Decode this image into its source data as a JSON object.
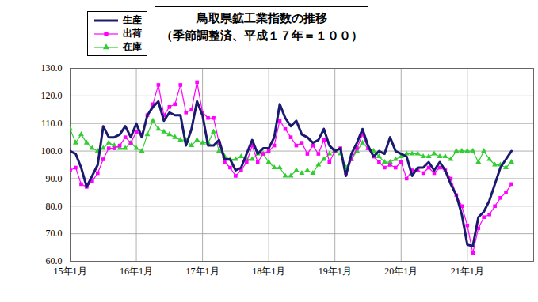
{
  "chart_data": {
    "type": "line",
    "title": "鳥取県鉱工業指数の推移",
    "subtitle": "（季節調整済、平成１７年＝１００）",
    "categories": [
      "15年1月",
      null,
      null,
      null,
      null,
      null,
      null,
      null,
      null,
      null,
      null,
      null,
      "16年1月",
      null,
      null,
      null,
      null,
      null,
      null,
      null,
      null,
      null,
      null,
      null,
      "17年1月",
      null,
      null,
      null,
      null,
      null,
      null,
      null,
      null,
      null,
      null,
      null,
      "18年1月",
      null,
      null,
      null,
      null,
      null,
      null,
      null,
      null,
      null,
      null,
      null,
      "19年1月",
      null,
      null,
      null,
      null,
      null,
      null,
      null,
      null,
      null,
      null,
      null,
      "20年1月",
      null,
      null,
      null,
      null,
      null,
      null,
      null,
      null,
      null,
      null,
      null,
      "21年1月",
      null,
      null,
      null,
      null,
      null,
      null,
      null,
      null
    ],
    "series": [
      {
        "name": "生産",
        "color": "#1a1a6e",
        "marker": "none",
        "line_style": "solid",
        "values": [
          100,
          99,
          94,
          87,
          91,
          95,
          109,
          105,
          105,
          106,
          109,
          105,
          110,
          105,
          113,
          116,
          118,
          111,
          114,
          113,
          113,
          102,
          108,
          118,
          113,
          102,
          102,
          104,
          97,
          97,
          93,
          94,
          99,
          104,
          99,
          101,
          101,
          105,
          117,
          112,
          109,
          111,
          106,
          105,
          103,
          104,
          108,
          102,
          100,
          101,
          91,
          99,
          103,
          108,
          102,
          98,
          100,
          99,
          105,
          100,
          99,
          98,
          91,
          94,
          94,
          96,
          93,
          96,
          93,
          88,
          84,
          77,
          66,
          65.5,
          76,
          78,
          82,
          88,
          94,
          97,
          100
        ]
      },
      {
        "name": "出荷",
        "color": "#ff00ff",
        "marker": "square",
        "line_style": "solid",
        "values": [
          93,
          94,
          88,
          87,
          89,
          92,
          97,
          101,
          101,
          102,
          105,
          103,
          107,
          106,
          113,
          117,
          124,
          113,
          116,
          117,
          124,
          114,
          115,
          125,
          114,
          112,
          112,
          103,
          96,
          94,
          91,
          93,
          96,
          102,
          96,
          99,
          100,
          102,
          111,
          108,
          105,
          102,
          103,
          99,
          102,
          99,
          104,
          96,
          100,
          101,
          92,
          97,
          101,
          106,
          101,
          98,
          96,
          94,
          95,
          94,
          96,
          90,
          93,
          93,
          92,
          94,
          92,
          94,
          93,
          90,
          84,
          80,
          73,
          63,
          72,
          76,
          77,
          80,
          83,
          85,
          88
        ]
      },
      {
        "name": "在庫",
        "color": "#33cc33",
        "marker": "triangle",
        "line_style": "solid",
        "values": [
          108,
          103,
          106,
          103,
          101,
          100,
          101,
          103,
          102,
          101,
          101,
          103,
          101,
          100,
          106,
          111,
          108,
          107,
          106,
          105,
          104,
          104,
          102,
          104,
          103,
          103,
          107,
          100,
          98,
          97,
          97,
          98,
          97,
          97,
          99,
          99,
          96,
          94,
          94,
          91,
          91,
          93,
          92,
          93,
          92,
          95,
          97,
          99,
          100,
          99,
          94,
          97,
          100,
          103,
          101,
          100,
          98,
          96,
          96,
          97,
          98,
          99,
          99,
          99,
          98,
          98,
          99,
          98,
          98,
          97,
          100,
          100,
          100,
          100,
          96,
          100,
          97,
          95,
          95,
          94,
          96
        ]
      }
    ],
    "ylim": [
      60,
      130
    ],
    "yticks": [
      {
        "value": 60,
        "label": "60.0"
      },
      {
        "value": 70,
        "label": "70.0"
      },
      {
        "value": 80,
        "label": "80.0"
      },
      {
        "value": 90,
        "label": "90.0"
      },
      {
        "value": 100,
        "label": "100.0"
      },
      {
        "value": 110,
        "label": "110.0"
      },
      {
        "value": 120,
        "label": "120.0"
      },
      {
        "value": 130,
        "label": "130.0"
      }
    ],
    "grid": true,
    "legend": "top-left"
  }
}
